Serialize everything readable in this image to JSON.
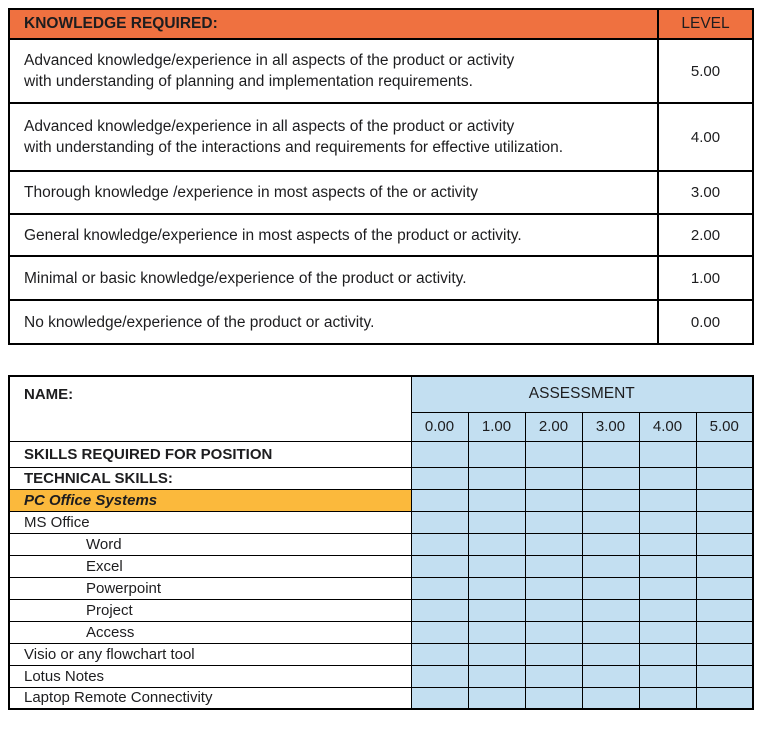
{
  "knowledge_table": {
    "header": "KNOWLEDGE REQUIRED:",
    "level_header": "LEVEL",
    "rows": [
      {
        "text": "Advanced knowledge/experience in all aspects of the product or activity\nwith understanding of planning and implementation requirements.",
        "level": "5.00"
      },
      {
        "text": "Advanced knowledge/experience in all aspects of the product or activity\nwith understanding of the interactions and requirements for effective utilization.",
        "level": "4.00"
      },
      {
        "text": "Thorough knowledge /experience in most aspects of the or activity",
        "level": "3.00"
      },
      {
        "text": "General knowledge/experience in most aspects of the product or activity.",
        "level": "2.00"
      },
      {
        "text": "Minimal or basic knowledge/experience of the product or activity.",
        "level": "1.00"
      },
      {
        "text": "No knowledge/experience of the product or activity.",
        "level": "0.00"
      }
    ]
  },
  "assessment_table": {
    "name_label": "NAME:",
    "assessment_header": "ASSESSMENT",
    "score_columns": [
      "0.00",
      "1.00",
      "2.00",
      "3.00",
      "4.00",
      "5.00"
    ],
    "rows": [
      {
        "label": "SKILLS REQUIRED FOR POSITION",
        "style": "bold"
      },
      {
        "label": "TECHNICAL SKILLS:",
        "style": "bold"
      },
      {
        "label": "PC Office Systems",
        "style": "highlight"
      },
      {
        "label": "MS Office",
        "style": "normal"
      },
      {
        "label": "Word",
        "style": "indent"
      },
      {
        "label": "Excel",
        "style": "indent"
      },
      {
        "label": "Powerpoint",
        "style": "indent"
      },
      {
        "label": "Project",
        "style": "indent"
      },
      {
        "label": "Access",
        "style": "indent"
      },
      {
        "label": "Visio or any flowchart tool",
        "style": "normal"
      },
      {
        "label": "Lotus Notes",
        "style": "normal"
      },
      {
        "label": "Laptop Remote Connectivity",
        "style": "normal"
      }
    ]
  },
  "colors": {
    "orange_header": "#EF7140",
    "blue_cell": "#C3DFF1",
    "amber_highlight": "#FBB93C",
    "border": "#000000",
    "text": "#1D1D1F"
  }
}
